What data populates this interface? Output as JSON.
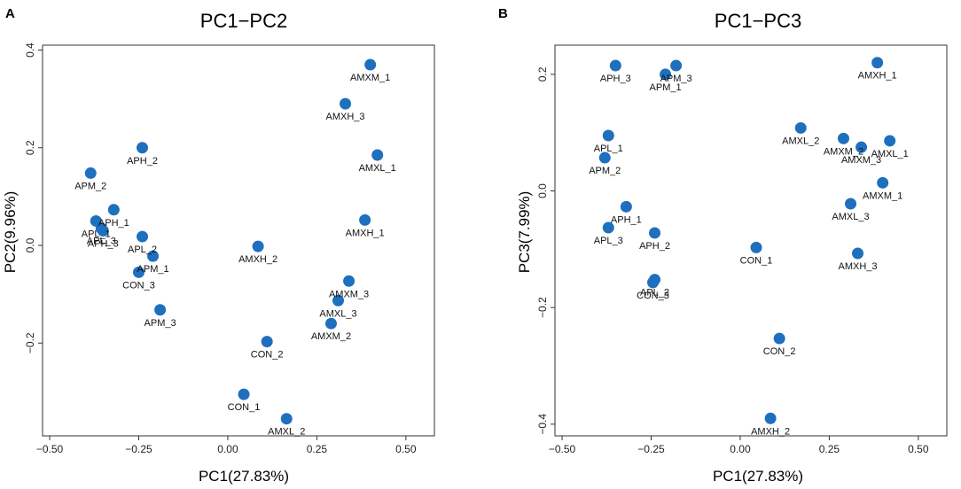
{
  "chart_data": [
    {
      "id": "A",
      "type": "scatter",
      "panel_label": "A",
      "title": "PC1−PC2",
      "xlabel": "PC1(27.83%)",
      "ylabel": "PC2(9.96%)",
      "xlim": [
        -0.52,
        0.58
      ],
      "ylim": [
        -0.39,
        0.41
      ],
      "xticks": [
        -0.5,
        -0.25,
        0.0,
        0.25,
        0.5
      ],
      "xtick_labels": [
        "−0.50",
        "−0.25",
        "0.00",
        "0.25",
        "0.50"
      ],
      "yticks": [
        -0.2,
        0.0,
        0.2,
        0.4
      ],
      "ytick_labels": [
        "−0.2",
        "0.0",
        "0.2",
        "0.4"
      ],
      "marker_color": "#1f6fbf",
      "grid": false,
      "points": [
        {
          "label": "AMXM_1",
          "x": 0.4,
          "y": 0.37
        },
        {
          "label": "AMXH_3",
          "x": 0.33,
          "y": 0.29
        },
        {
          "label": "AMXL_1",
          "x": 0.42,
          "y": 0.185
        },
        {
          "label": "APH_2",
          "x": -0.24,
          "y": 0.2
        },
        {
          "label": "APM_2",
          "x": -0.385,
          "y": 0.148
        },
        {
          "label": "APH_1",
          "x": -0.32,
          "y": 0.073
        },
        {
          "label": "APL_1",
          "x": -0.37,
          "y": 0.05
        },
        {
          "label": "APL_3",
          "x": -0.355,
          "y": 0.035
        },
        {
          "label": "APH_3",
          "x": -0.35,
          "y": 0.03
        },
        {
          "label": "AMXH_1",
          "x": 0.385,
          "y": 0.052
        },
        {
          "label": "APL_2",
          "x": -0.24,
          "y": 0.018
        },
        {
          "label": "AMXH_2",
          "x": 0.085,
          "y": -0.002
        },
        {
          "label": "APM_1",
          "x": -0.21,
          "y": -0.022
        },
        {
          "label": "CON_3",
          "x": -0.25,
          "y": -0.055
        },
        {
          "label": "AMXM_3",
          "x": 0.34,
          "y": -0.073
        },
        {
          "label": "AMXL_3",
          "x": 0.31,
          "y": -0.113
        },
        {
          "label": "APM_3",
          "x": -0.19,
          "y": -0.132
        },
        {
          "label": "AMXM_2",
          "x": 0.29,
          "y": -0.16
        },
        {
          "label": "CON_2",
          "x": 0.11,
          "y": -0.197
        },
        {
          "label": "CON_1",
          "x": 0.045,
          "y": -0.305
        },
        {
          "label": "AMXL_2",
          "x": 0.165,
          "y": -0.355
        }
      ]
    },
    {
      "id": "B",
      "type": "scatter",
      "panel_label": "B",
      "title": "PC1−PC3",
      "xlabel": "PC1(27.83%)",
      "ylabel": "PC3(7.99%)",
      "xlim": [
        -0.52,
        0.58
      ],
      "ylim": [
        -0.42,
        0.25
      ],
      "xticks": [
        -0.5,
        -0.25,
        0.0,
        0.25,
        0.5
      ],
      "xtick_labels": [
        "−0.50",
        "−0.25",
        "0.00",
        "0.25",
        "0.50"
      ],
      "yticks": [
        -0.4,
        -0.2,
        0.0,
        0.2
      ],
      "ytick_labels": [
        "−0.4",
        "−0.2",
        "0.0",
        "0.2"
      ],
      "marker_color": "#1f6fbf",
      "grid": false,
      "points": [
        {
          "label": "APH_3",
          "x": -0.35,
          "y": 0.215
        },
        {
          "label": "APM_3",
          "x": -0.18,
          "y": 0.215
        },
        {
          "label": "APM_1",
          "x": -0.21,
          "y": 0.2
        },
        {
          "label": "AMXH_1",
          "x": 0.385,
          "y": 0.22
        },
        {
          "label": "AMXL_2",
          "x": 0.17,
          "y": 0.108
        },
        {
          "label": "AMXM_2",
          "x": 0.29,
          "y": 0.09
        },
        {
          "label": "AMXM_3",
          "x": 0.34,
          "y": 0.075
        },
        {
          "label": "AMXL_1",
          "x": 0.42,
          "y": 0.086
        },
        {
          "label": "APL_1",
          "x": -0.37,
          "y": 0.095
        },
        {
          "label": "APM_2",
          "x": -0.38,
          "y": 0.057
        },
        {
          "label": "AMXM_1",
          "x": 0.4,
          "y": 0.014
        },
        {
          "label": "AMXL_3",
          "x": 0.31,
          "y": -0.022
        },
        {
          "label": "APH_1",
          "x": -0.32,
          "y": -0.027
        },
        {
          "label": "APL_3",
          "x": -0.37,
          "y": -0.063
        },
        {
          "label": "APH_2",
          "x": -0.24,
          "y": -0.072
        },
        {
          "label": "CON_1",
          "x": 0.045,
          "y": -0.097
        },
        {
          "label": "AMXH_3",
          "x": 0.33,
          "y": -0.107
        },
        {
          "label": "APL_2",
          "x": -0.24,
          "y": -0.152
        },
        {
          "label": "CON_3",
          "x": -0.245,
          "y": -0.157
        },
        {
          "label": "CON_2",
          "x": 0.11,
          "y": -0.253
        },
        {
          "label": "AMXH_2",
          "x": 0.085,
          "y": -0.39
        }
      ]
    }
  ]
}
